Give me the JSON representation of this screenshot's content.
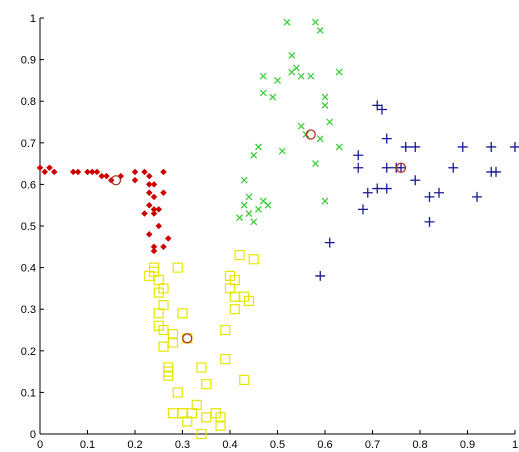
{
  "chart_data": {
    "type": "scatter",
    "title": "",
    "xlabel": "",
    "ylabel": "",
    "xlim": [
      0,
      1
    ],
    "ylim": [
      0,
      1
    ],
    "grid": false,
    "legend": "none",
    "x_ticks": [
      "0",
      "0.1",
      "0.2",
      "0.3",
      "0.4",
      "0.5",
      "0.6",
      "0.7",
      "0.8",
      "0.9",
      "1"
    ],
    "y_ticks": [
      "0",
      "0.1",
      "0.2",
      "0.3",
      "0.4",
      "0.5",
      "0.6",
      "0.7",
      "0.8",
      "0.9",
      "1"
    ],
    "series": [
      {
        "marker": "diamond",
        "color": "#cc0000",
        "points": [
          [
            0.0,
            0.64
          ],
          [
            0.01,
            0.63
          ],
          [
            0.02,
            0.64
          ],
          [
            0.03,
            0.63
          ],
          [
            0.07,
            0.63
          ],
          [
            0.08,
            0.63
          ],
          [
            0.1,
            0.63
          ],
          [
            0.11,
            0.63
          ],
          [
            0.12,
            0.63
          ],
          [
            0.13,
            0.62
          ],
          [
            0.14,
            0.62
          ],
          [
            0.15,
            0.61
          ],
          [
            0.17,
            0.62
          ],
          [
            0.2,
            0.63
          ],
          [
            0.2,
            0.61
          ],
          [
            0.22,
            0.63
          ],
          [
            0.23,
            0.62
          ],
          [
            0.23,
            0.6
          ],
          [
            0.23,
            0.58
          ],
          [
            0.24,
            0.6
          ],
          [
            0.24,
            0.57
          ],
          [
            0.23,
            0.55
          ],
          [
            0.24,
            0.54
          ],
          [
            0.22,
            0.53
          ],
          [
            0.24,
            0.53
          ],
          [
            0.25,
            0.54
          ],
          [
            0.26,
            0.63
          ],
          [
            0.26,
            0.58
          ],
          [
            0.25,
            0.5
          ],
          [
            0.23,
            0.48
          ],
          [
            0.24,
            0.45
          ],
          [
            0.24,
            0.44
          ],
          [
            0.26,
            0.45
          ],
          [
            0.27,
            0.47
          ]
        ]
      },
      {
        "marker": "square",
        "color": "#e6e600",
        "points": [
          [
            0.23,
            0.38
          ],
          [
            0.24,
            0.4
          ],
          [
            0.24,
            0.39
          ],
          [
            0.25,
            0.37
          ],
          [
            0.25,
            0.34
          ],
          [
            0.26,
            0.35
          ],
          [
            0.26,
            0.31
          ],
          [
            0.25,
            0.29
          ],
          [
            0.25,
            0.26
          ],
          [
            0.26,
            0.25
          ],
          [
            0.26,
            0.21
          ],
          [
            0.28,
            0.24
          ],
          [
            0.28,
            0.22
          ],
          [
            0.27,
            0.16
          ],
          [
            0.27,
            0.15
          ],
          [
            0.27,
            0.14
          ],
          [
            0.29,
            0.4
          ],
          [
            0.29,
            0.1
          ],
          [
            0.28,
            0.05
          ],
          [
            0.3,
            0.29
          ],
          [
            0.3,
            0.05
          ],
          [
            0.31,
            0.03
          ],
          [
            0.31,
            0.23
          ],
          [
            0.32,
            0.05
          ],
          [
            0.33,
            0.07
          ],
          [
            0.34,
            0.16
          ],
          [
            0.35,
            0.12
          ],
          [
            0.35,
            0.04
          ],
          [
            0.34,
            0.0
          ],
          [
            0.37,
            0.05
          ],
          [
            0.38,
            0.04
          ],
          [
            0.38,
            0.02
          ],
          [
            0.39,
            0.18
          ],
          [
            0.39,
            0.25
          ],
          [
            0.4,
            0.38
          ],
          [
            0.4,
            0.35
          ],
          [
            0.41,
            0.37
          ],
          [
            0.41,
            0.33
          ],
          [
            0.41,
            0.3
          ],
          [
            0.42,
            0.43
          ],
          [
            0.43,
            0.33
          ],
          [
            0.43,
            0.13
          ],
          [
            0.44,
            0.32
          ],
          [
            0.45,
            0.42
          ],
          [
            0.3,
            0.05
          ]
        ]
      },
      {
        "marker": "x",
        "color": "#33cc33",
        "points": [
          [
            0.42,
            0.52
          ],
          [
            0.43,
            0.61
          ],
          [
            0.43,
            0.55
          ],
          [
            0.44,
            0.57
          ],
          [
            0.44,
            0.53
          ],
          [
            0.45,
            0.51
          ],
          [
            0.45,
            0.67
          ],
          [
            0.46,
            0.69
          ],
          [
            0.46,
            0.54
          ],
          [
            0.47,
            0.56
          ],
          [
            0.47,
            0.86
          ],
          [
            0.47,
            0.82
          ],
          [
            0.49,
            0.81
          ],
          [
            0.5,
            0.85
          ],
          [
            0.52,
            0.99
          ],
          [
            0.51,
            0.68
          ],
          [
            0.53,
            0.91
          ],
          [
            0.53,
            0.87
          ],
          [
            0.54,
            0.88
          ],
          [
            0.55,
            0.74
          ],
          [
            0.55,
            0.86
          ],
          [
            0.56,
            0.72
          ],
          [
            0.57,
            0.86
          ],
          [
            0.58,
            0.65
          ],
          [
            0.58,
            0.99
          ],
          [
            0.59,
            0.97
          ],
          [
            0.6,
            0.81
          ],
          [
            0.6,
            0.79
          ],
          [
            0.6,
            0.56
          ],
          [
            0.61,
            0.75
          ],
          [
            0.63,
            0.87
          ],
          [
            0.63,
            0.69
          ],
          [
            0.48,
            0.55
          ],
          [
            0.59,
            0.71
          ]
        ]
      },
      {
        "marker": "plus",
        "color": "#1a1a99",
        "points": [
          [
            0.59,
            0.38
          ],
          [
            0.61,
            0.46
          ],
          [
            0.67,
            0.67
          ],
          [
            0.67,
            0.64
          ],
          [
            0.68,
            0.54
          ],
          [
            0.69,
            0.58
          ],
          [
            0.71,
            0.79
          ],
          [
            0.71,
            0.59
          ],
          [
            0.72,
            0.78
          ],
          [
            0.73,
            0.71
          ],
          [
            0.73,
            0.64
          ],
          [
            0.73,
            0.59
          ],
          [
            0.75,
            0.64
          ],
          [
            0.76,
            0.64
          ],
          [
            0.77,
            0.69
          ],
          [
            0.79,
            0.69
          ],
          [
            0.79,
            0.61
          ],
          [
            0.82,
            0.57
          ],
          [
            0.82,
            0.51
          ],
          [
            0.84,
            0.58
          ],
          [
            0.87,
            0.64
          ],
          [
            0.89,
            0.69
          ],
          [
            0.92,
            0.57
          ],
          [
            0.95,
            0.69
          ],
          [
            0.95,
            0.63
          ],
          [
            0.96,
            0.63
          ],
          [
            1.0,
            0.69
          ]
        ]
      }
    ],
    "centroids": {
      "marker": "circle",
      "color": "#b03020",
      "points": [
        [
          0.16,
          0.61
        ],
        [
          0.31,
          0.23
        ],
        [
          0.57,
          0.72
        ],
        [
          0.76,
          0.64
        ]
      ]
    }
  }
}
